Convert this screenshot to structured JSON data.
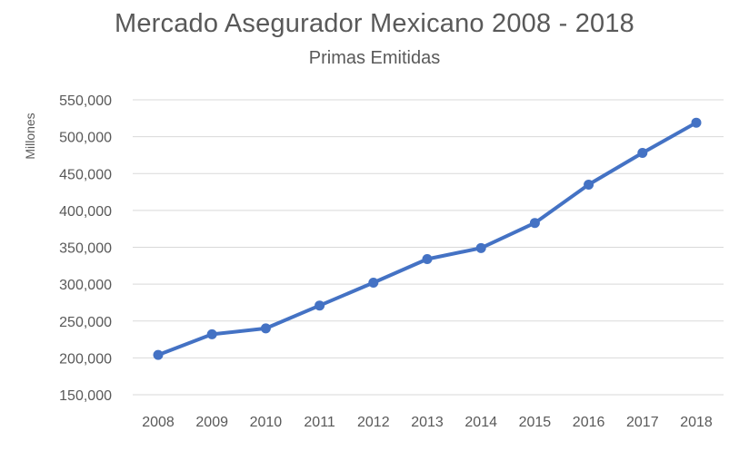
{
  "chart_data": {
    "type": "line",
    "title": "Mercado Asegurador Mexicano 2008 - 2018",
    "subtitle": "Primas Emitidas",
    "xlabel": "",
    "ylabel": "Millones",
    "categories": [
      "2008",
      "2009",
      "2010",
      "2011",
      "2012",
      "2013",
      "2014",
      "2015",
      "2016",
      "2017",
      "2018"
    ],
    "series": [
      {
        "name": "Primas Emitidas",
        "color": "#4472C4",
        "values": [
          204000,
          232000,
          240000,
          271000,
          302000,
          334000,
          349000,
          383000,
          435000,
          478000,
          519000
        ]
      }
    ],
    "ylim": [
      150000,
      550000
    ],
    "yticks": [
      150000,
      200000,
      250000,
      300000,
      350000,
      400000,
      450000,
      500000,
      550000
    ],
    "ytick_labels": [
      "150,000",
      "200,000",
      "250,000",
      "300,000",
      "350,000",
      "400,000",
      "450,000",
      "500,000",
      "550,000"
    ],
    "grid": true,
    "legend": "none"
  }
}
